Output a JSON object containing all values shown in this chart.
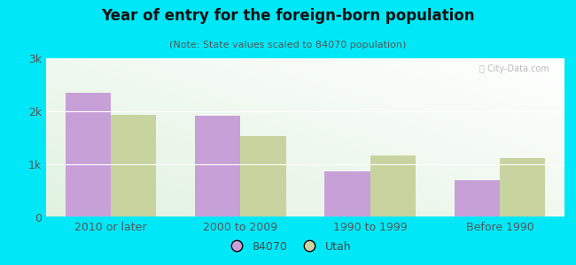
{
  "title": "Year of entry for the foreign-born population",
  "subtitle": "(Note: State values scaled to 84070 population)",
  "categories": [
    "2010 or later",
    "2000 to 2009",
    "1990 to 1999",
    "Before 1990"
  ],
  "values_84070": [
    2350,
    1920,
    860,
    700
  ],
  "values_utah": [
    1940,
    1530,
    1170,
    1110
  ],
  "bar_color_84070": "#c8a0d8",
  "bar_color_utah": "#c8d4a0",
  "background_outer": "#00e8f8",
  "ylim": [
    0,
    3000
  ],
  "yticks": [
    0,
    1000,
    2000,
    3000
  ],
  "ytick_labels": [
    "0",
    "1k",
    "2k",
    "3k"
  ],
  "legend_label_84070": "84070",
  "legend_label_utah": "Utah",
  "bar_width": 0.35,
  "figsize": [
    6.5,
    3.0
  ],
  "dpi": 100
}
